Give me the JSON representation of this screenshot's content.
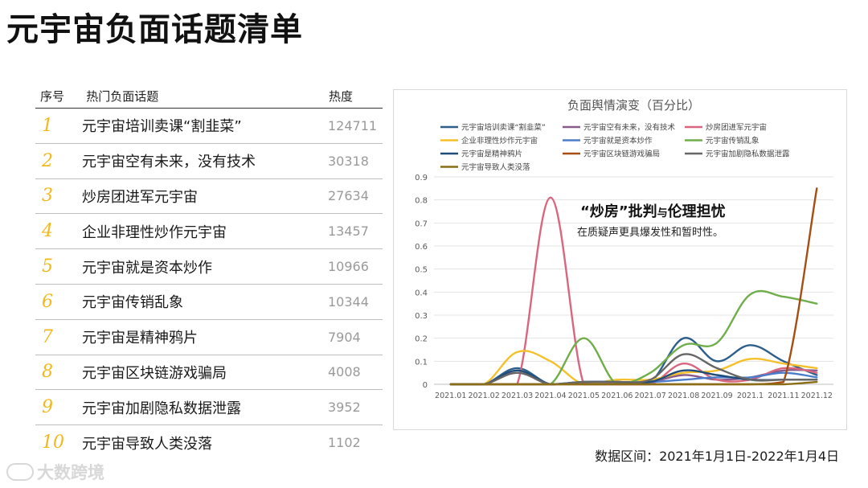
{
  "page_title": "元宇宙负面话题清单",
  "table": {
    "headers": {
      "rank": "序号",
      "topic": "热门负面话题",
      "heat": "热度"
    },
    "rows": [
      {
        "rank": "1",
        "topic": "元宇宙培训卖课“割韭菜”",
        "heat": "124711"
      },
      {
        "rank": "2",
        "topic": "元宇宙空有未来，没有技术",
        "heat": "30318"
      },
      {
        "rank": "3",
        "topic": "炒房团进军元宇宙",
        "heat": "27634"
      },
      {
        "rank": "4",
        "topic": "企业非理性炒作元宇宙",
        "heat": "13457"
      },
      {
        "rank": "5",
        "topic": "元宇宙就是资本炒作",
        "heat": "10966"
      },
      {
        "rank": "6",
        "topic": "元宇宙传销乱象",
        "heat": "10344"
      },
      {
        "rank": "7",
        "topic": "元宇宙是精神鸦片",
        "heat": "7904"
      },
      {
        "rank": "8",
        "topic": "元宇宙区块链游戏骗局",
        "heat": "4008"
      },
      {
        "rank": "9",
        "topic": "元宇宙加剧隐私数据泄露",
        "heat": "3952"
      },
      {
        "rank": "10",
        "topic": "元宇宙导致人类没落",
        "heat": "1102"
      }
    ]
  },
  "chart_data": {
    "type": "line",
    "title": "负面舆情演变（百分比）",
    "categories": [
      "2021.01",
      "2021.02",
      "2021.03",
      "2021.04",
      "2021.05",
      "2021.06",
      "2021.07",
      "2021.08",
      "2021.09",
      "2021.1",
      "2021.11",
      "2021.12"
    ],
    "ylim": [
      0,
      0.9
    ],
    "yticks": [
      "0",
      "0.1",
      "0.2",
      "0.3",
      "0.4",
      "0.5",
      "0.6",
      "0.7",
      "0.8",
      "0.9"
    ],
    "grid": true,
    "legend_position": "top",
    "annotation": {
      "headline_a": "“炒房”批判",
      "headline_b": "与",
      "headline_c": "伦理担忧",
      "text": "在质疑声更具爆发性和暂时性。"
    },
    "series": [
      {
        "name": "元宇宙培训卖课“割韭菜”",
        "color": "#2e5f8a",
        "values": [
          0,
          0,
          0.07,
          0,
          0.01,
          0.01,
          0.01,
          0.2,
          0.1,
          0.17,
          0.1,
          0.04
        ]
      },
      {
        "name": "元宇宙空有未来，没有技术",
        "color": "#8a5a8a",
        "values": [
          0,
          0,
          0.05,
          0,
          0.01,
          0.01,
          0.01,
          0.04,
          0.02,
          0.03,
          0.06,
          0.06
        ]
      },
      {
        "name": "炒房团进军元宇宙",
        "color": "#d9667e",
        "values": [
          0,
          0,
          0,
          0.81,
          0,
          0,
          0,
          0.09,
          0.02,
          0.02,
          0.07,
          0.05
        ]
      },
      {
        "name": "企业非理性炒作元宇宙",
        "color": "#f5c02a",
        "values": [
          0,
          0,
          0.14,
          0.1,
          0,
          0.02,
          0.02,
          0.05,
          0.06,
          0.11,
          0.09,
          0.07
        ]
      },
      {
        "name": "元宇宙就是资本炒作",
        "color": "#4a7cc9",
        "values": [
          0,
          0,
          0,
          0,
          0.01,
          0.01,
          0.01,
          0.02,
          0.03,
          0.03,
          0.05,
          0.03
        ]
      },
      {
        "name": "元宇宙传销乱象",
        "color": "#6fae4a",
        "values": [
          0,
          0,
          0,
          0,
          0.2,
          0,
          0.05,
          0.17,
          0.18,
          0.39,
          0.38,
          0.35
        ]
      },
      {
        "name": "元宇宙是精神鸦片",
        "color": "#1f4d7a",
        "values": [
          0,
          0,
          0.06,
          0,
          0.01,
          0.01,
          0.01,
          0.06,
          0.04,
          0.02,
          0.02,
          0.02
        ]
      },
      {
        "name": "元宇宙区块链游戏骗局",
        "color": "#a64d12",
        "values": [
          0,
          0,
          0,
          0,
          0,
          0,
          0,
          0,
          0,
          0,
          0.01,
          0.85
        ]
      },
      {
        "name": "元宇宙加剧隐私数据泄露",
        "color": "#666666",
        "values": [
          0,
          0,
          0.05,
          0,
          0.01,
          0.01,
          0.02,
          0.13,
          0.07,
          0.02,
          0.02,
          0.02
        ]
      },
      {
        "name": "元宇宙导致人类没落",
        "color": "#8a6d14",
        "values": [
          0,
          0,
          0,
          0,
          0,
          0,
          0,
          0,
          0,
          0,
          0,
          0.01
        ]
      }
    ]
  },
  "footer": "数据区间：2021年1月1日-2022年1月4日",
  "logo_text": "大数跨境"
}
